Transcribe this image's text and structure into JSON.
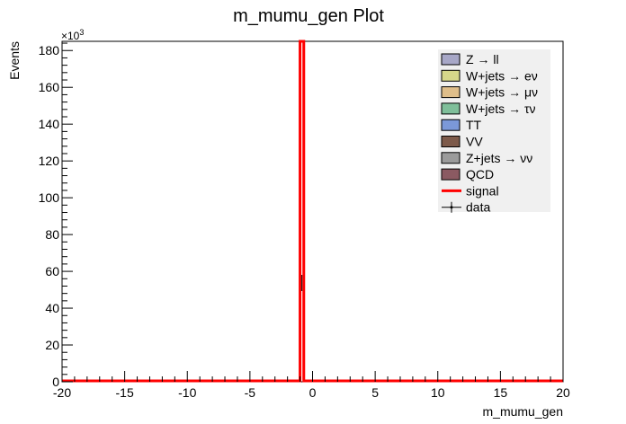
{
  "chart_data": {
    "type": "histogram",
    "title": "m_mumu_gen Plot",
    "xlabel": "m_mumu_gen",
    "ylabel": "Events",
    "y_multiplier_label": "×10",
    "y_multiplier_exponent": "3",
    "xlim": [
      -20,
      20
    ],
    "ylim": [
      0,
      185000
    ],
    "x_ticks": [
      -20,
      -15,
      -10,
      -5,
      0,
      5,
      10,
      15,
      20
    ],
    "x_tick_labels": [
      "-20",
      "-15",
      "-10",
      "-5",
      "0",
      "5",
      "10",
      "15",
      "20"
    ],
    "y_ticks": [
      0,
      20000,
      40000,
      60000,
      80000,
      100000,
      120000,
      140000,
      160000,
      180000
    ],
    "y_tick_labels": [
      "0",
      "20",
      "40",
      "60",
      "80",
      "100",
      "120",
      "140",
      "160",
      "180"
    ],
    "signal": {
      "name": "signal",
      "color": "#ff0000",
      "bin_edges": [
        -1.0,
        -0.7
      ],
      "peak_value": 185000
    },
    "legend_position": "top-right",
    "legend": [
      {
        "label": "Z → ll",
        "color": "#a7a7c7",
        "kind": "box"
      },
      {
        "label": "W+jets → eν",
        "color": "#d6d78a",
        "kind": "box"
      },
      {
        "label": "W+jets → μν",
        "color": "#dfbe8a",
        "kind": "box"
      },
      {
        "label": "W+jets → τν",
        "color": "#7fbf9a",
        "kind": "box"
      },
      {
        "label": "TT",
        "color": "#7b98d8",
        "kind": "box"
      },
      {
        "label": "VV",
        "color": "#7d5a4a",
        "kind": "box"
      },
      {
        "label": "Z+jets → νν",
        "color": "#9b9b9b",
        "kind": "box"
      },
      {
        "label": "QCD",
        "color": "#8b5a62",
        "kind": "box"
      },
      {
        "label": "signal",
        "color": "#ff0000",
        "kind": "line"
      },
      {
        "label": "data",
        "color": "#000000",
        "kind": "marker"
      }
    ]
  }
}
